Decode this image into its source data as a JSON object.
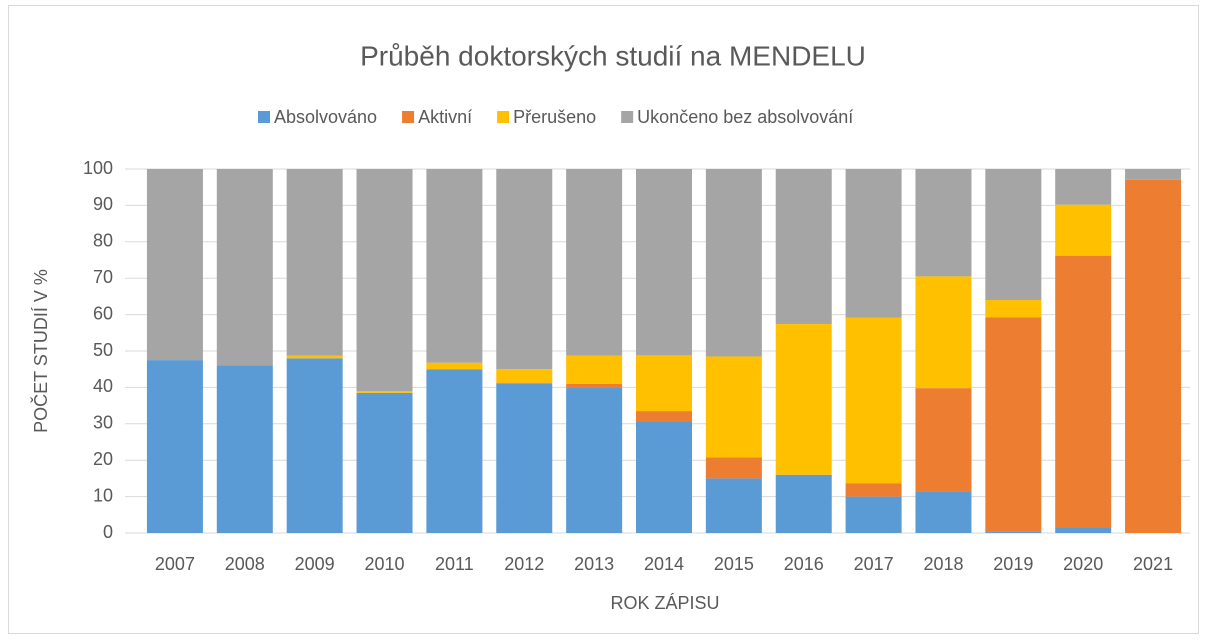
{
  "chart_data": {
    "type": "stacked_bar",
    "title": "Průběh doktorských studií na MENDELU",
    "x_label": "ROK ZÁPISU",
    "y_label": "POČET STUDIÍ V %",
    "categories": [
      "2007",
      "2008",
      "2009",
      "2010",
      "2011",
      "2012",
      "2013",
      "2014",
      "2015",
      "2016",
      "2017",
      "2018",
      "2019",
      "2020",
      "2021"
    ],
    "series": [
      {
        "name": "Absolvováno",
        "color": "#5b9bd5",
        "values": [
          47.5,
          46,
          48,
          38.5,
          45,
          41,
          40,
          30.5,
          15,
          16,
          10,
          11.5,
          0.5,
          1.5,
          0
        ]
      },
      {
        "name": "Aktivní",
        "color": "#ed7d31",
        "values": [
          0,
          0,
          0,
          0,
          0,
          0.3,
          1,
          3,
          5.8,
          0,
          3.6,
          28.3,
          58.7,
          74.7,
          97
        ]
      },
      {
        "name": "Přerušeno",
        "color": "#ffc000",
        "values": [
          0,
          0,
          0.7,
          0.5,
          1.8,
          3.7,
          7.7,
          15.3,
          27.7,
          41.4,
          45.6,
          30.7,
          4.8,
          14,
          0
        ]
      },
      {
        "name": "Ukončeno bez absolvování",
        "color": "#a5a5a5",
        "values": [
          52.5,
          54,
          51.3,
          61,
          53.2,
          55,
          51.3,
          51.2,
          51.5,
          42.6,
          40.8,
          29.5,
          36,
          9.8,
          3
        ]
      }
    ],
    "ylim": [
      0,
      100
    ],
    "yticks": [
      0,
      10,
      20,
      30,
      40,
      50,
      60,
      70,
      80,
      90,
      100
    ],
    "grid": true,
    "legend": "top"
  }
}
